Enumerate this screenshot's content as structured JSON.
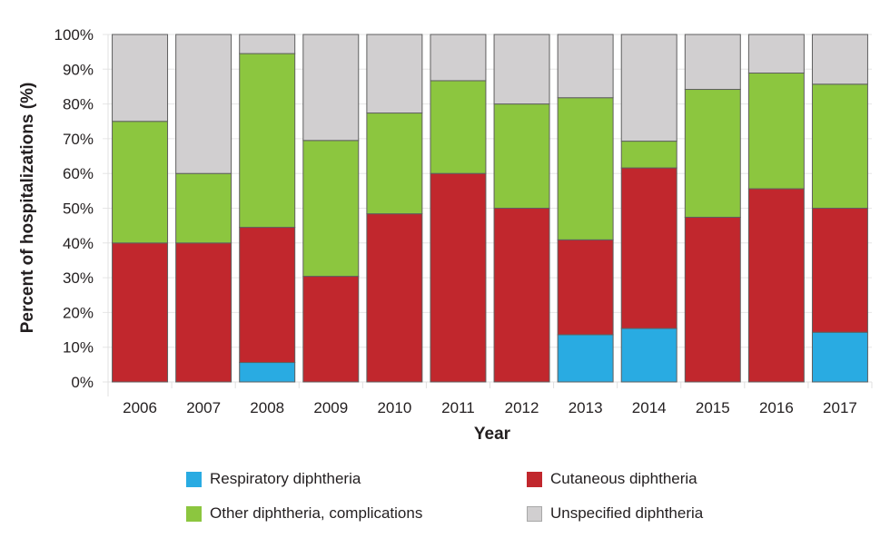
{
  "chart_data": {
    "type": "bar",
    "stacked": true,
    "title": "",
    "xlabel": "Year",
    "ylabel": "Percent of hospitalizations (%)",
    "ylim": [
      0,
      100
    ],
    "yticks": [
      "0%",
      "10%",
      "20%",
      "30%",
      "40%",
      "50%",
      "60%",
      "70%",
      "80%",
      "90%",
      "100%"
    ],
    "grid": true,
    "legend_position": "bottom",
    "categories": [
      "2006",
      "2007",
      "2008",
      "2009",
      "2010",
      "2011",
      "2012",
      "2013",
      "2014",
      "2015",
      "2016",
      "2017"
    ],
    "series": [
      {
        "name": "Respiratory diphtheria",
        "color": "#29abe2",
        "values": [
          0,
          0,
          5.6,
          0,
          0,
          0,
          0,
          13.6,
          15.4,
          0,
          0,
          14.3
        ]
      },
      {
        "name": "Cutaneous diphtheria",
        "color": "#c1272d",
        "values": [
          40,
          40,
          38.9,
          30.4,
          48.4,
          60,
          50,
          27.3,
          46.2,
          47.4,
          55.6,
          35.7
        ]
      },
      {
        "name": "Other diphtheria, complications",
        "color": "#8cc63f",
        "values": [
          35,
          20,
          50,
          39.1,
          29,
          26.7,
          30,
          40.9,
          7.7,
          36.8,
          33.3,
          35.7
        ]
      },
      {
        "name": "Unspecified diphtheria",
        "color": "#d1cfd0",
        "values": [
          25,
          40,
          5.5,
          30.5,
          22.6,
          13.3,
          20,
          18.2,
          30.7,
          15.8,
          11.1,
          14.3
        ]
      }
    ],
    "legend_order": [
      0,
      1,
      2,
      3
    ]
  }
}
